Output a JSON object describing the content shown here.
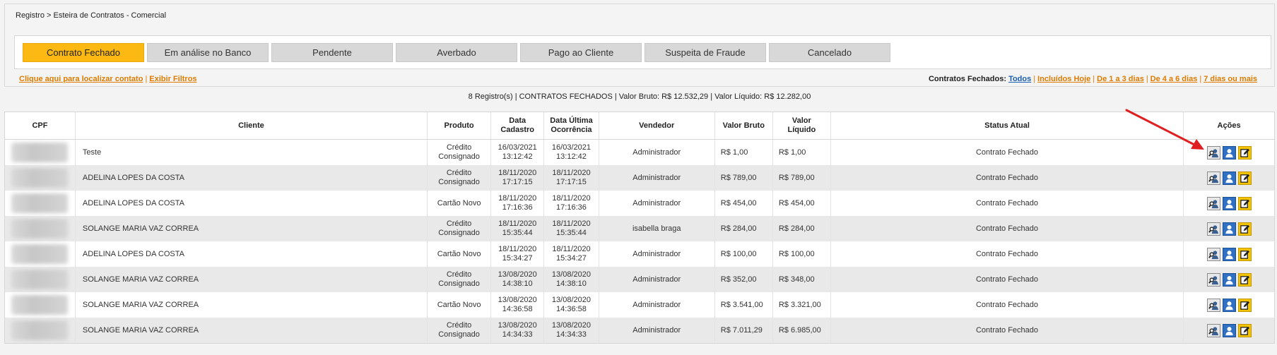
{
  "breadcrumb": "Registro > Esteira de Contratos - Comercial",
  "status_tabs": [
    {
      "label": "Contrato Fechado",
      "active": true
    },
    {
      "label": "Em análise no Banco",
      "active": false
    },
    {
      "label": "Pendente",
      "active": false
    },
    {
      "label": "Averbado",
      "active": false
    },
    {
      "label": "Pago ao Cliente",
      "active": false
    },
    {
      "label": "Suspeita de Fraude",
      "active": false
    },
    {
      "label": "Cancelado",
      "active": false
    }
  ],
  "links": {
    "locate": "Clique aqui para localizar contato",
    "separator": "|",
    "filters": "Exibir Filtros"
  },
  "filter_links": {
    "label": "Contratos Fechados:",
    "todos": "Todos",
    "incluidos_hoje": "Incluídos Hoje",
    "d1_3": "De 1 a 3 dias",
    "d4_6": "De 4 a 6 dias",
    "d7": "7 dias ou mais"
  },
  "summary": "8 Registro(s) | CONTRATOS FECHADOS | Valor Bruto: R$ 12.532,29 | Valor Líquido: R$ 12.282,00",
  "table": {
    "headers": {
      "cpf": "CPF",
      "cliente": "Cliente",
      "produto": "Produto",
      "data_cadastro_1": "Data",
      "data_cadastro_2": "Cadastro",
      "data_ultima_1": "Data Última",
      "data_ultima_2": "Ocorrência",
      "vendedor": "Vendedor",
      "valor_bruto": "Valor Bruto",
      "valor_liquido_1": "Valor",
      "valor_liquido_2": "Líquido",
      "status": "Status Atual",
      "acoes": "Ações"
    },
    "rows": [
      {
        "cliente": "Teste",
        "produto_1": "Crédito",
        "produto_2": "Consignado",
        "cad_date": "16/03/2021",
        "cad_time": "13:12:42",
        "ult_date": "16/03/2021",
        "ult_time": "13:12:42",
        "vendedor": "Administrador",
        "bruto": "R$ 1,00",
        "liquido": "R$ 1,00",
        "status": "Contrato Fechado"
      },
      {
        "cliente": "ADELINA LOPES DA COSTA",
        "produto_1": "Crédito",
        "produto_2": "Consignado",
        "cad_date": "18/11/2020",
        "cad_time": "17:17:15",
        "ult_date": "18/11/2020",
        "ult_time": "17:17:15",
        "vendedor": "Administrador",
        "bruto": "R$ 789,00",
        "liquido": "R$ 789,00",
        "status": "Contrato Fechado"
      },
      {
        "cliente": "ADELINA LOPES DA COSTA",
        "produto_1": "Cartão Novo",
        "produto_2": "",
        "cad_date": "18/11/2020",
        "cad_time": "17:16:36",
        "ult_date": "18/11/2020",
        "ult_time": "17:16:36",
        "vendedor": "Administrador",
        "bruto": "R$ 454,00",
        "liquido": "R$ 454,00",
        "status": "Contrato Fechado"
      },
      {
        "cliente": "SOLANGE MARIA VAZ CORREA",
        "produto_1": "Crédito",
        "produto_2": "Consignado",
        "cad_date": "18/11/2020",
        "cad_time": "15:35:44",
        "ult_date": "18/11/2020",
        "ult_time": "15:35:44",
        "vendedor": "isabella braga",
        "bruto": "R$ 284,00",
        "liquido": "R$ 284,00",
        "status": "Contrato Fechado"
      },
      {
        "cliente": "ADELINA LOPES DA COSTA",
        "produto_1": "Cartão Novo",
        "produto_2": "",
        "cad_date": "18/11/2020",
        "cad_time": "15:34:27",
        "ult_date": "18/11/2020",
        "ult_time": "15:34:27",
        "vendedor": "Administrador",
        "bruto": "R$ 100,00",
        "liquido": "R$ 100,00",
        "status": "Contrato Fechado"
      },
      {
        "cliente": "SOLANGE MARIA VAZ CORREA",
        "produto_1": "Crédito",
        "produto_2": "Consignado",
        "cad_date": "13/08/2020",
        "cad_time": "14:38:10",
        "ult_date": "13/08/2020",
        "ult_time": "14:38:10",
        "vendedor": "Administrador",
        "bruto": "R$ 352,00",
        "liquido": "R$ 348,00",
        "status": "Contrato Fechado"
      },
      {
        "cliente": "SOLANGE MARIA VAZ CORREA",
        "produto_1": "Cartão Novo",
        "produto_2": "",
        "cad_date": "13/08/2020",
        "cad_time": "14:36:58",
        "ult_date": "13/08/2020",
        "ult_time": "14:36:58",
        "vendedor": "Administrador",
        "bruto": "R$ 3.541,00",
        "liquido": "R$ 3.321,00",
        "status": "Contrato Fechado"
      },
      {
        "cliente": "SOLANGE MARIA VAZ CORREA",
        "produto_1": "Crédito",
        "produto_2": "Consignado",
        "cad_date": "13/08/2020",
        "cad_time": "14:34:33",
        "ult_date": "13/08/2020",
        "ult_time": "14:34:33",
        "vendedor": "Administrador",
        "bruto": "R$ 7.011,29",
        "liquido": "R$ 6.985,00",
        "status": "Contrato Fechado"
      }
    ]
  },
  "icons": {
    "search": "search-user-icon",
    "user": "user-profile-icon",
    "edit": "edit-icon"
  },
  "colors": {
    "active_tab": "#fdb913",
    "link": "#e07b00",
    "link_blue": "#1a5fb4",
    "annotation_arrow": "#e02020"
  }
}
